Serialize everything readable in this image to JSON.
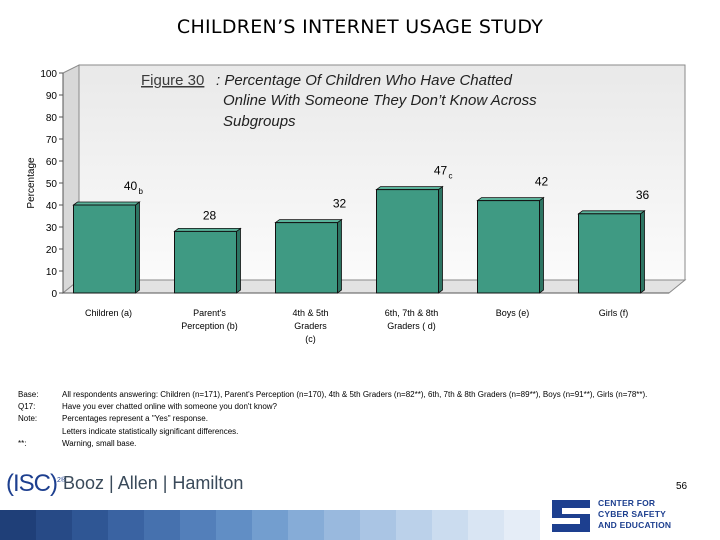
{
  "slide": {
    "title": "CHILDREN’S INTERNET USAGE STUDY",
    "page_number": "56"
  },
  "chart_data": {
    "type": "bar",
    "figure_label": "Figure 30",
    "title_rest": ": Percentage Of Children Who Have Chatted Online With Someone They Don’t Know Across Subgroups",
    "title_line1": ": Percentage Of Children Who Have Chatted",
    "title_line2": "Online With Someone They Don’t Know Across",
    "title_line3": "Subgroups",
    "ylabel": "Percentage",
    "ylim": [
      0,
      100
    ],
    "yticks": [
      0,
      10,
      20,
      30,
      40,
      50,
      60,
      70,
      80,
      90,
      100
    ],
    "categories": [
      {
        "line1": "Children (a)",
        "line2": ""
      },
      {
        "line1": "Parent's",
        "line2": "Perception (b)"
      },
      {
        "line1": "4th & 5th",
        "line2": "Graders",
        "line3": "(c)"
      },
      {
        "line1": "6th, 7th & 8th",
        "line2": "Graders ( d)"
      },
      {
        "line1": "Boys (e)",
        "line2": ""
      },
      {
        "line1": "Girls (f)",
        "line2": ""
      }
    ],
    "values": [
      40,
      28,
      32,
      47,
      42,
      36
    ],
    "value_labels": [
      "40",
      "28",
      "32",
      "47",
      "42",
      "36"
    ],
    "significance_letters": [
      "b",
      "",
      "",
      "c",
      "",
      ""
    ],
    "bar_color": "#3f9a83",
    "grid": false,
    "legend": "none"
  },
  "notes": [
    {
      "key": "Base:",
      "text": "All respondents answering: Children (n=171), Parent's Perception (n=170), 4th & 5th Graders (n=82**), 6th, 7th & 8th Graders (n=89**), Boys (n=91**), Girls (n=78**)."
    },
    {
      "key": "Q17:",
      "text": "Have you ever chatted online with someone you don't know?"
    },
    {
      "key": "Note:",
      "text": "Percentages represent a \"Yes\" response."
    },
    {
      "key": "",
      "text": "Letters indicate statistically significant differences."
    },
    {
      "key": "**:",
      "text": "Warning, small base."
    }
  ],
  "footer": {
    "isc_logo": "(ISC)",
    "isc_super": "2®",
    "bah_logo": "Booz | Allen | Hamilton",
    "ccse_line1": "CENTER FOR",
    "ccse_line2": "CYBER SAFETY",
    "ccse_line3": "AND EDUCATION",
    "strip_colors": [
      "#1f3f78",
      "#274a86",
      "#2f5694",
      "#3a63a2",
      "#4671ae",
      "#537fba",
      "#618ec5",
      "#739ecf",
      "#86acd7",
      "#99b9de",
      "#aac5e4",
      "#bbd1ea",
      "#cbdcef",
      "#d9e5f3",
      "#e5edf7"
    ]
  }
}
